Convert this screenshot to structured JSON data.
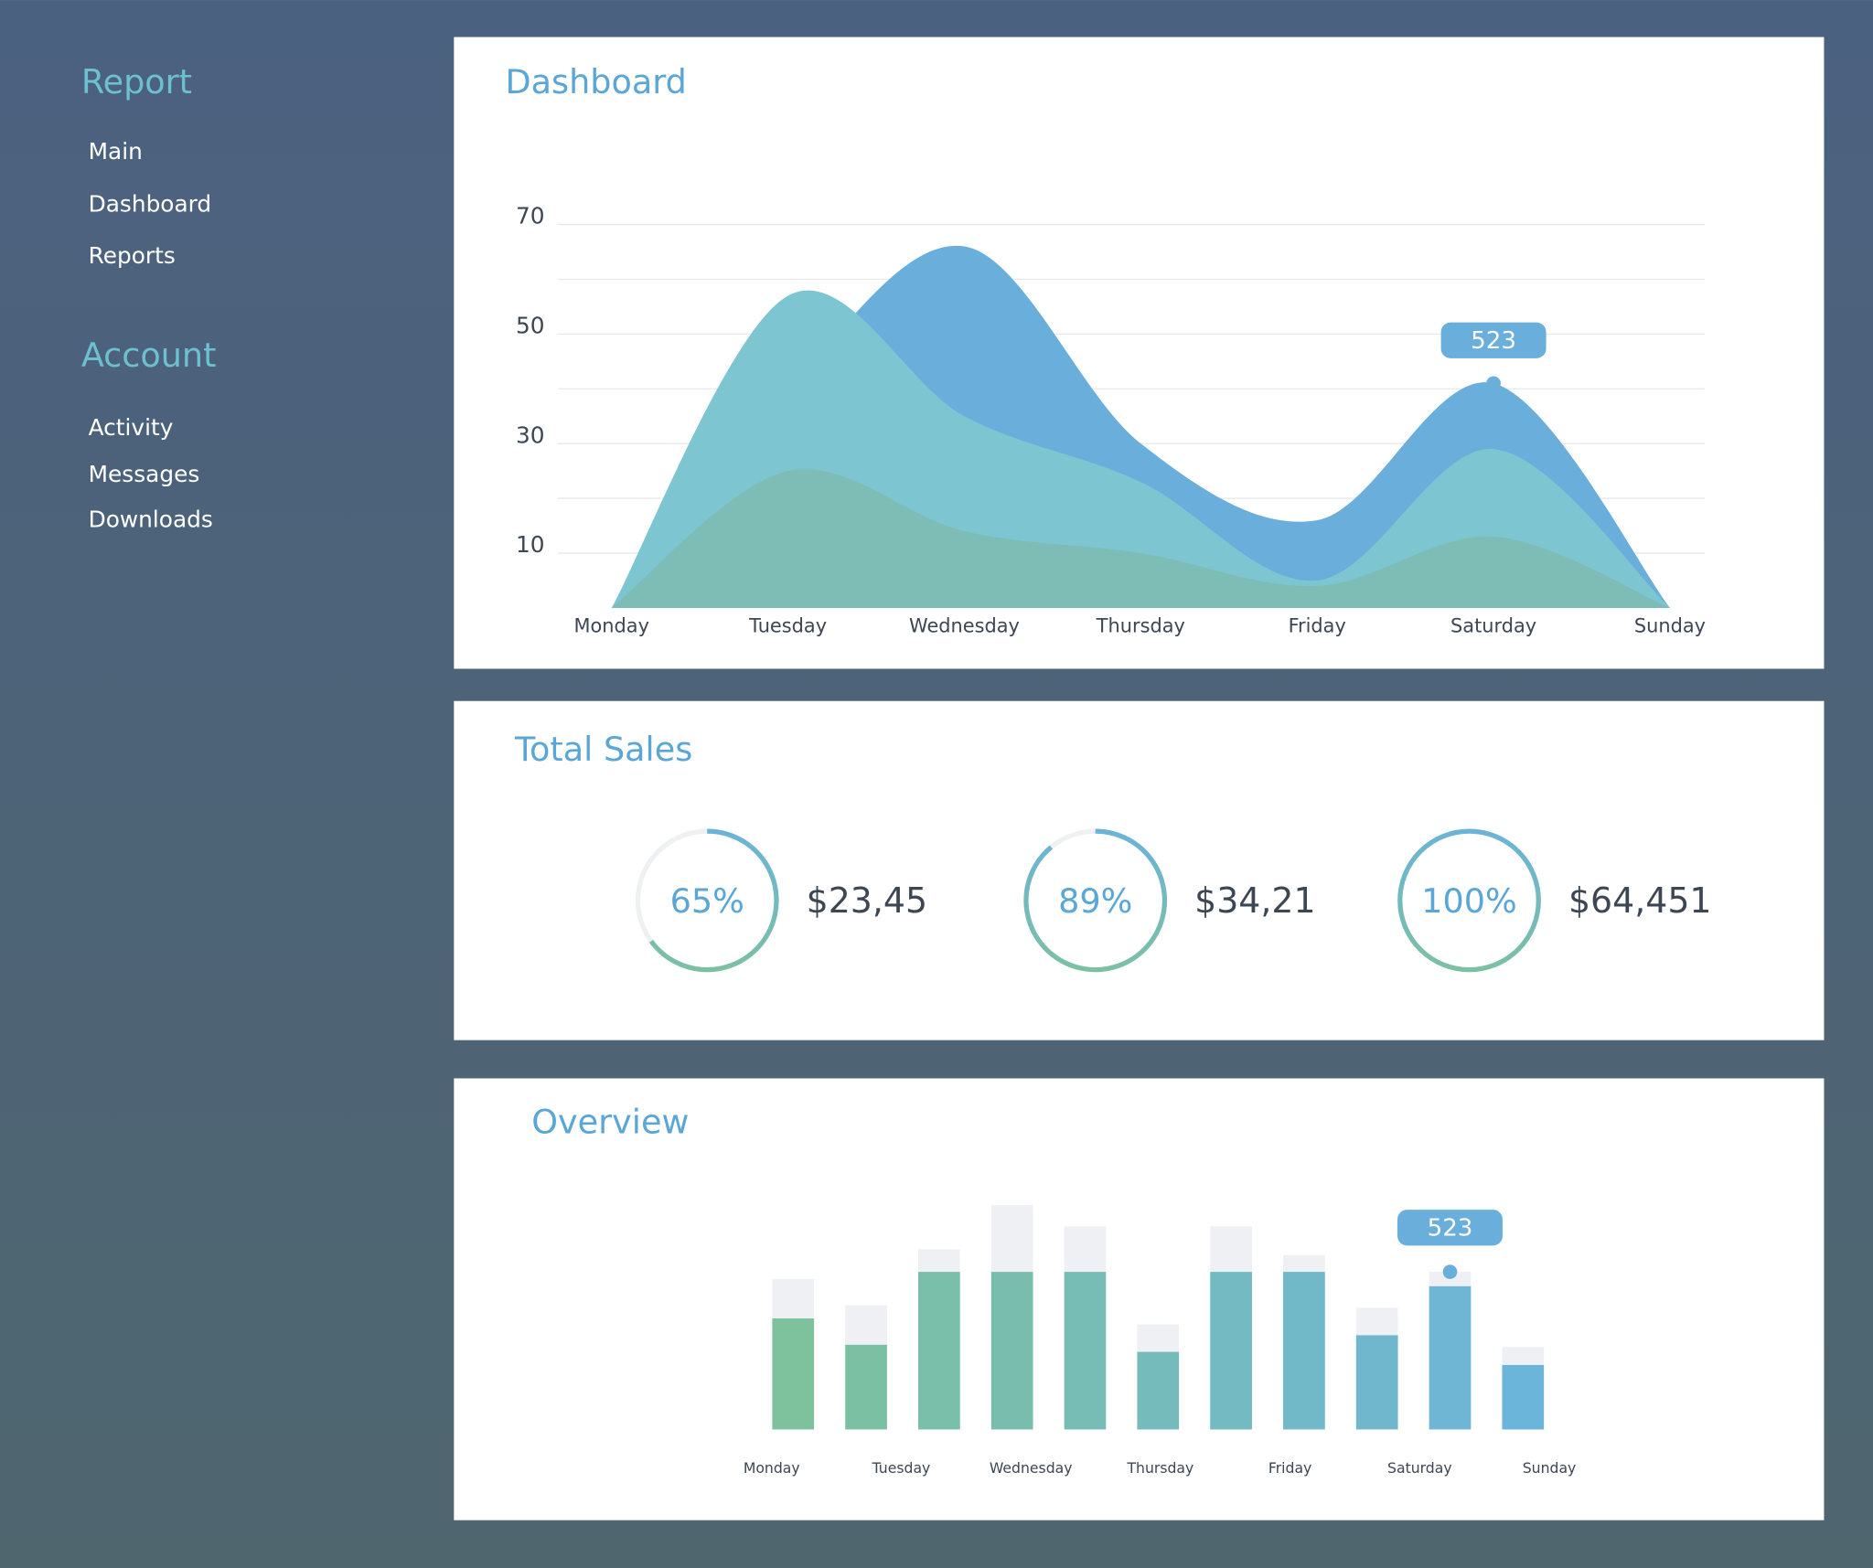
{
  "sidebar": {
    "sections": [
      {
        "title": "Report",
        "items": [
          "Main",
          "Dashboard",
          "Reports"
        ]
      },
      {
        "title": "Account",
        "items": [
          "Activity",
          "Messages",
          "Downloads"
        ]
      }
    ]
  },
  "chart_data": [
    {
      "type": "area",
      "title": "Dashboard",
      "categories": [
        "Monday",
        "Tuesday",
        "Wednesday",
        "Thursday",
        "Friday",
        "Saturday",
        "Sunday"
      ],
      "series": [
        {
          "color": "#6aaedb",
          "values": [
            0,
            40,
            66,
            30,
            16,
            41,
            0
          ]
        },
        {
          "color": "#7ec5d2",
          "values": [
            0,
            57,
            35,
            23,
            5,
            29,
            0
          ]
        },
        {
          "color": "#7dbdb6",
          "values": [
            0,
            25,
            14,
            10,
            4,
            13,
            0
          ]
        }
      ],
      "ylim": [
        0,
        70
      ],
      "yticks": [
        10,
        30,
        50,
        70
      ],
      "grid_lines": [
        10,
        20,
        30,
        40,
        50,
        60,
        70
      ],
      "grid": true,
      "annotation": "523"
    },
    {
      "type": "donut",
      "title": "Total Sales",
      "values": [
        65,
        89,
        100
      ],
      "value_labels": [
        "65%",
        "89%",
        "100%"
      ],
      "amounts": [
        "$23,45",
        "$34,21",
        "$64,451"
      ],
      "colors": [
        "#6ab4d8",
        "#7cc0a4"
      ],
      "track_color": "#eef0f2"
    },
    {
      "type": "stacked_bar",
      "title": "Overview",
      "xlabels": [
        "Monday",
        "Tuesday",
        "Wednesday",
        "Thursday",
        "Friday",
        "Saturday",
        "Sunday"
      ],
      "series": [
        {
          "colors": [
            "#7ec19d",
            "#6cb5da"
          ],
          "values": [
            93,
            71,
            132,
            132,
            132,
            65,
            132,
            132,
            79,
            120,
            54
          ]
        },
        {
          "color": "#eef0f3",
          "values": [
            33,
            33,
            19,
            56,
            38,
            23,
            38,
            14,
            23,
            12,
            15
          ]
        }
      ],
      "annotation": "523"
    }
  ]
}
